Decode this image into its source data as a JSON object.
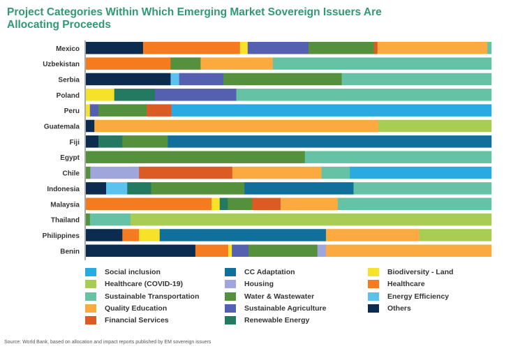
{
  "chart_data": {
    "type": "bar",
    "orientation": "horizontal",
    "stacked": true,
    "unit": "percent of proceeds",
    "title": "Project Categories Within Which Emerging Market Sovereign Issuers Are Allocating Proceeds",
    "xlabel": "",
    "ylabel": "",
    "xlim": [
      0,
      100
    ],
    "legend_position": "bottom",
    "grid": false,
    "categories_info": {
      "Social inclusion": "#29abe2",
      "CC Adaptation": "#10709b",
      "Biodiversity - Land": "#f7e22a",
      "Healthcare (COVID-19)": "#a9cd52",
      "Housing": "#9ea6dc",
      "Healthcare": "#f47b20",
      "Sustainable Transportation": "#66c2a5",
      "Water & Wastewater": "#55903d",
      "Energy Efficiency": "#5bc2ef",
      "Quality Education": "#fbaa3f",
      "Sustainable Agriculture": "#5561b0",
      "Others": "#0b2b4f",
      "Financial Services": "#dc5a24",
      "Renewable Energy": "#237a61"
    },
    "legend": [
      "Social inclusion",
      "CC Adaptation",
      "Biodiversity - Land",
      "Healthcare (COVID-19)",
      "Housing",
      "Healthcare",
      "Sustainable Transportation",
      "Water & Wastewater",
      "Energy Efficiency",
      "Quality Education",
      "Sustainable Agriculture",
      "Others",
      "Financial Services",
      "Renewable Energy"
    ],
    "countries": [
      {
        "name": "Mexico",
        "segments": [
          [
            "Others",
            14.1
          ],
          [
            "Healthcare",
            23.9
          ],
          [
            "Biodiversity - Land",
            1.9
          ],
          [
            "Sustainable Agriculture",
            15.0
          ],
          [
            "Water & Wastewater",
            16.1
          ],
          [
            "Financial Services",
            0.9
          ],
          [
            "Quality Education",
            27.1
          ],
          [
            "Sustainable Transportation",
            1.0
          ]
        ]
      },
      {
        "name": "Uzbekistan",
        "segments": [
          [
            "Healthcare",
            20.9
          ],
          [
            "Water & Wastewater",
            7.4
          ],
          [
            "Quality Education",
            17.8
          ],
          [
            "Sustainable Transportation",
            53.9
          ]
        ]
      },
      {
        "name": "Serbia",
        "segments": [
          [
            "Others",
            20.9
          ],
          [
            "Energy Efficiency",
            2.1
          ],
          [
            "Sustainable Agriculture",
            10.9
          ],
          [
            "Water & Wastewater",
            29.2
          ],
          [
            "Sustainable Transportation",
            36.9
          ]
        ]
      },
      {
        "name": "Poland",
        "segments": [
          [
            "Biodiversity - Land",
            7.0
          ],
          [
            "Renewable Energy",
            10.0
          ],
          [
            "Sustainable Agriculture",
            20.1
          ],
          [
            "Sustainable Transportation",
            62.9
          ]
        ]
      },
      {
        "name": "Peru",
        "segments": [
          [
            "Biodiversity - Land",
            1.0
          ],
          [
            "Sustainable Agriculture",
            2.1
          ],
          [
            "Water & Wastewater",
            11.9
          ],
          [
            "Financial Services",
            6.1
          ],
          [
            "Social inclusion",
            78.9
          ]
        ]
      },
      {
        "name": "Guatemala",
        "segments": [
          [
            "Others",
            2.1
          ],
          [
            "Quality Education",
            70.0
          ],
          [
            "Healthcare (COVID-19)",
            27.9
          ]
        ]
      },
      {
        "name": "Fiji",
        "segments": [
          [
            "Others",
            3.1
          ],
          [
            "Renewable Energy",
            5.9
          ],
          [
            "Water & Wastewater",
            11.2
          ],
          [
            "CC Adaptation",
            79.8
          ]
        ]
      },
      {
        "name": "Egypt",
        "segments": [
          [
            "Water & Wastewater",
            54.0
          ],
          [
            "Sustainable Transportation",
            46.0
          ]
        ]
      },
      {
        "name": "Chile",
        "segments": [
          [
            "Water & Wastewater",
            1.1
          ],
          [
            "Housing",
            12.0
          ],
          [
            "Financial Services",
            23.0
          ],
          [
            "Quality Education",
            22.0
          ],
          [
            "Sustainable Transportation",
            7.0
          ],
          [
            "Social inclusion",
            34.9
          ]
        ]
      },
      {
        "name": "Indonesia",
        "segments": [
          [
            "Others",
            5.0
          ],
          [
            "Energy Efficiency",
            5.2
          ],
          [
            "Renewable Energy",
            5.9
          ],
          [
            "Water & Wastewater",
            23.0
          ],
          [
            "CC Adaptation",
            26.9
          ],
          [
            "Sustainable Transportation",
            34.0
          ]
        ]
      },
      {
        "name": "Malaysia",
        "segments": [
          [
            "Healthcare",
            31.0
          ],
          [
            "Biodiversity - Land",
            2.0
          ],
          [
            "Renewable Energy",
            2.0
          ],
          [
            "Water & Wastewater",
            6.0
          ],
          [
            "Financial Services",
            7.0
          ],
          [
            "Quality Education",
            14.1
          ],
          [
            "Sustainable Transportation",
            37.9
          ]
        ]
      },
      {
        "name": "Thailand",
        "segments": [
          [
            "Water & Wastewater",
            1.0
          ],
          [
            "Sustainable Transportation",
            10.0
          ],
          [
            "Healthcare (COVID-19)",
            89.0
          ]
        ]
      },
      {
        "name": "Philippines",
        "segments": [
          [
            "Others",
            9.0
          ],
          [
            "Healthcare",
            4.1
          ],
          [
            "Biodiversity - Land",
            5.1
          ],
          [
            "CC Adaptation",
            41.0
          ],
          [
            "Quality Education",
            23.0
          ],
          [
            "Healthcare (COVID-19)",
            17.8
          ]
        ]
      },
      {
        "name": "Benin",
        "segments": [
          [
            "Others",
            27.0
          ],
          [
            "Healthcare",
            8.1
          ],
          [
            "Biodiversity - Land",
            0.9
          ],
          [
            "Sustainable Agriculture",
            4.1
          ],
          [
            "Water & Wastewater",
            17.0
          ],
          [
            "Housing",
            2.1
          ],
          [
            "Quality Education",
            40.8
          ]
        ]
      }
    ]
  },
  "source": "Source: World Bank, based on allocation and impact reports published by EM sovereign issuers"
}
